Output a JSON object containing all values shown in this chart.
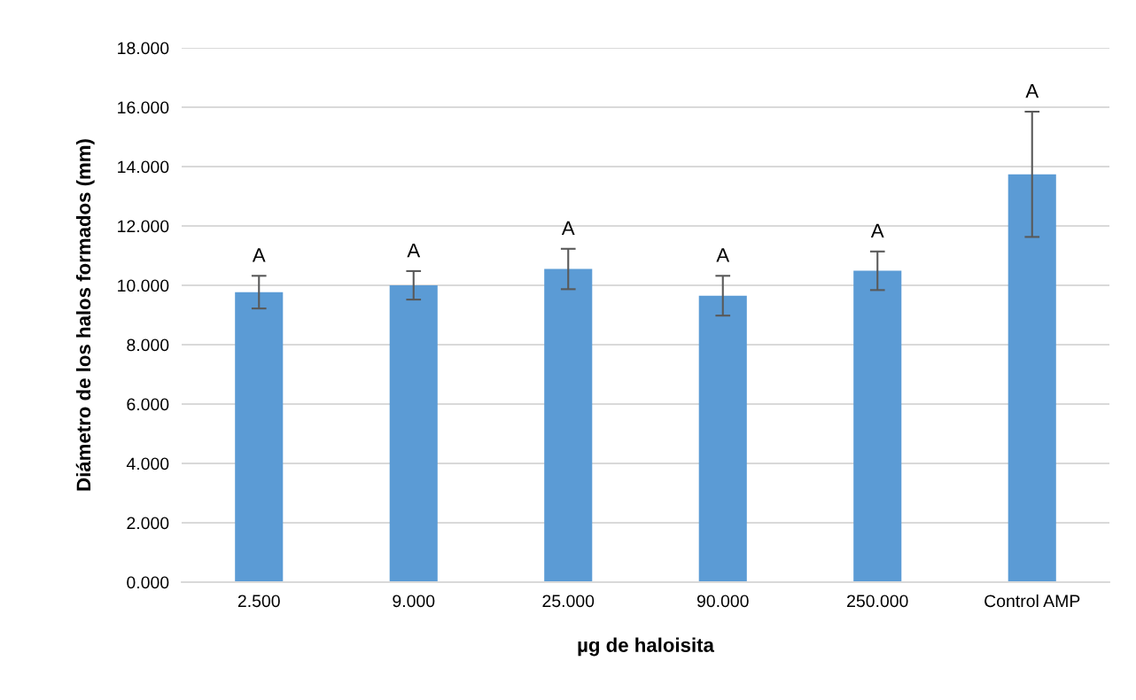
{
  "chart_data": {
    "type": "bar",
    "xlabel": "µg de haloisita",
    "ylabel": "Diámetro de los halos formados (mm)",
    "categories": [
      "2.500",
      "9.000",
      "25.000",
      "90.000",
      "250.000",
      "Control AMP"
    ],
    "values": [
      9.77,
      10.0,
      10.55,
      9.65,
      10.49,
      13.74
    ],
    "errors": [
      0.55,
      0.48,
      0.68,
      0.67,
      0.65,
      2.11
    ],
    "color": "#5b9bd5",
    "ylim": [
      0,
      18
    ],
    "yticks": [
      {
        "value": 0,
        "label": "0.000"
      },
      {
        "value": 2,
        "label": "2.000"
      },
      {
        "value": 4,
        "label": "4.000"
      },
      {
        "value": 6,
        "label": "6.000"
      },
      {
        "value": 8,
        "label": "8.000"
      },
      {
        "value": 10,
        "label": "10.000"
      },
      {
        "value": 12,
        "label": "12.000"
      },
      {
        "value": 14,
        "label": "14.000"
      },
      {
        "value": 16,
        "label": "16.000"
      },
      {
        "value": 18,
        "label": "18.000"
      }
    ],
    "grid": "y",
    "annotations": [
      {
        "text": "A",
        "x": "2.500",
        "y": 10.32
      },
      {
        "text": "A",
        "x": "9.000",
        "y": 10.48
      },
      {
        "text": "A",
        "x": "25.000",
        "y": 11.23
      },
      {
        "text": "A",
        "x": "90.000",
        "y": 10.32
      },
      {
        "text": "A",
        "x": "250.000",
        "y": 11.14
      },
      {
        "text": "A",
        "x": "Control AMP",
        "y": 15.85
      }
    ]
  }
}
